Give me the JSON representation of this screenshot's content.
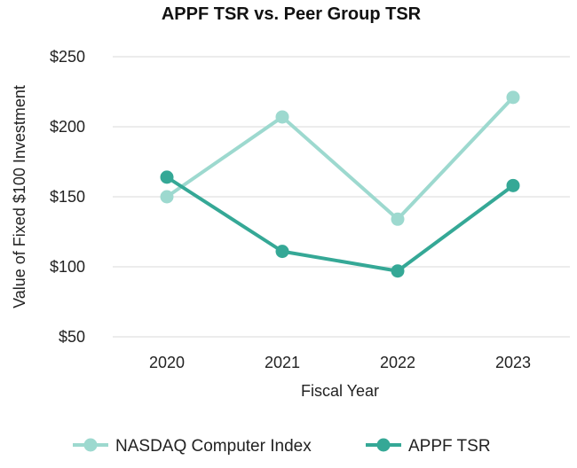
{
  "chart_data": {
    "type": "line",
    "title": "APPF TSR vs. Peer Group TSR",
    "xlabel": "Fiscal Year",
    "ylabel": "Value of Fixed $100 Investment",
    "categories": [
      "2020",
      "2021",
      "2022",
      "2023"
    ],
    "ylim": [
      50,
      250
    ],
    "yticks": [
      50,
      100,
      150,
      200,
      250
    ],
    "ytick_labels": [
      "$50",
      "$100",
      "$150",
      "$200",
      "$250"
    ],
    "grid": true,
    "legend_position": "bottom",
    "series": [
      {
        "name": "NASDAQ Computer Index",
        "color": "#9dd9cf",
        "values": [
          150,
          207,
          134,
          221
        ]
      },
      {
        "name": "APPF TSR",
        "color": "#35a896",
        "values": [
          164,
          111,
          97,
          158
        ]
      }
    ]
  }
}
